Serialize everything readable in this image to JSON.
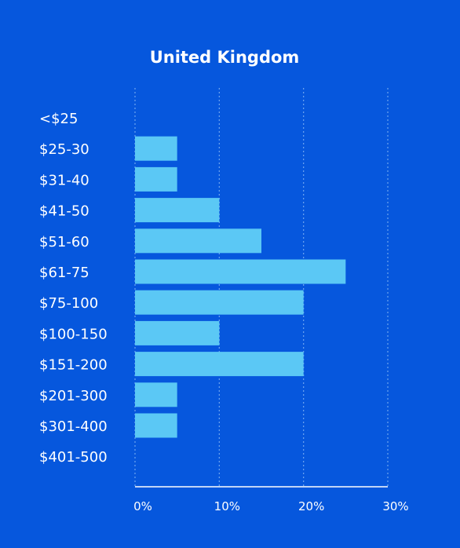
{
  "chart_data": {
    "type": "bar",
    "orientation": "horizontal",
    "title": "United Kingdom",
    "categories": [
      "<$25",
      "$25-30",
      "$31-40",
      "$41-50",
      "$51-60",
      "$61-75",
      "$75-100",
      "$100-150",
      "$151-200",
      "$201-300",
      "$301-400",
      "$401-500"
    ],
    "values": [
      0,
      5,
      5,
      10,
      15,
      25,
      20,
      10,
      20,
      5,
      5,
      0
    ],
    "xlim": [
      0,
      30
    ],
    "xticks": [
      0,
      10,
      20,
      30
    ],
    "xtick_labels": [
      "0%",
      "10%",
      "20%",
      "30%"
    ],
    "xlabel": "",
    "ylabel": "",
    "grid": "vertical dotted",
    "colors": {
      "background": "#0657dd",
      "bar": "#5bc8f5",
      "grid": "#6fa6f0",
      "text": "#ffffff"
    }
  }
}
